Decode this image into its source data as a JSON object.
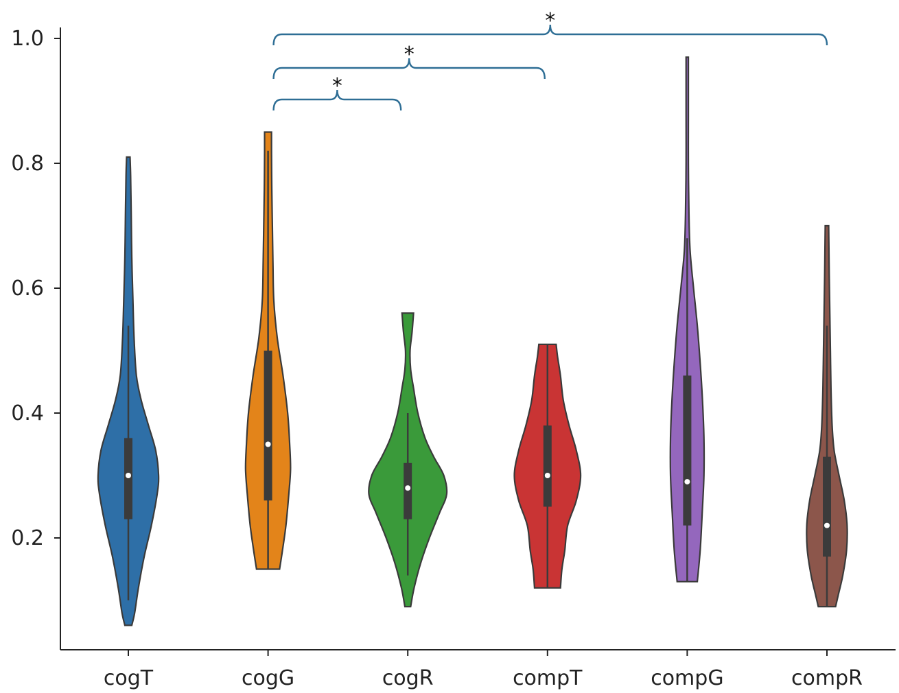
{
  "chart_data": {
    "type": "violin",
    "categories": [
      "cogT",
      "cogG",
      "cogR",
      "compT",
      "compG",
      "compR"
    ],
    "ylim": [
      0.0,
      1.0
    ],
    "yticks": [
      {
        "value": 0.2,
        "label": "0.2"
      },
      {
        "value": 0.4,
        "label": "0.4"
      },
      {
        "value": 0.6,
        "label": "0.6"
      },
      {
        "value": 0.8,
        "label": "0.8"
      },
      {
        "value": 1.0,
        "label": "1.0"
      }
    ],
    "grid": false,
    "violins": [
      {
        "name": "cogT",
        "color": "#2e6fa7",
        "min": 0.06,
        "max": 0.81,
        "q1": 0.23,
        "median": 0.3,
        "q3": 0.36,
        "whisker_low": 0.1,
        "whisker_high": 0.54,
        "density": [
          [
            0.06,
            0.012
          ],
          [
            0.08,
            0.022
          ],
          [
            0.12,
            0.035
          ],
          [
            0.17,
            0.055
          ],
          [
            0.22,
            0.08
          ],
          [
            0.27,
            0.1
          ],
          [
            0.3,
            0.105
          ],
          [
            0.34,
            0.095
          ],
          [
            0.38,
            0.07
          ],
          [
            0.42,
            0.045
          ],
          [
            0.46,
            0.028
          ],
          [
            0.52,
            0.02
          ],
          [
            0.58,
            0.016
          ],
          [
            0.65,
            0.012
          ],
          [
            0.72,
            0.01
          ],
          [
            0.78,
            0.008
          ],
          [
            0.81,
            0.006
          ]
        ]
      },
      {
        "name": "cogG",
        "color": "#e3841a",
        "min": 0.15,
        "max": 0.85,
        "q1": 0.26,
        "median": 0.35,
        "q3": 0.5,
        "whisker_low": 0.15,
        "whisker_high": 0.82,
        "density": [
          [
            0.15,
            0.04
          ],
          [
            0.18,
            0.05
          ],
          [
            0.22,
            0.062
          ],
          [
            0.27,
            0.072
          ],
          [
            0.31,
            0.078
          ],
          [
            0.35,
            0.075
          ],
          [
            0.4,
            0.068
          ],
          [
            0.46,
            0.052
          ],
          [
            0.52,
            0.032
          ],
          [
            0.58,
            0.02
          ],
          [
            0.64,
            0.017
          ],
          [
            0.7,
            0.015
          ],
          [
            0.76,
            0.013
          ],
          [
            0.82,
            0.012
          ],
          [
            0.85,
            0.012
          ]
        ]
      },
      {
        "name": "cogR",
        "color": "#3a9a3a",
        "min": 0.09,
        "max": 0.56,
        "q1": 0.23,
        "median": 0.28,
        "q3": 0.32,
        "whisker_low": 0.14,
        "whisker_high": 0.4,
        "density": [
          [
            0.09,
            0.01
          ],
          [
            0.12,
            0.022
          ],
          [
            0.16,
            0.045
          ],
          [
            0.2,
            0.075
          ],
          [
            0.24,
            0.11
          ],
          [
            0.27,
            0.135
          ],
          [
            0.3,
            0.125
          ],
          [
            0.33,
            0.09
          ],
          [
            0.36,
            0.06
          ],
          [
            0.4,
            0.035
          ],
          [
            0.44,
            0.02
          ],
          [
            0.47,
            0.01
          ],
          [
            0.5,
            0.008
          ],
          [
            0.53,
            0.015
          ],
          [
            0.56,
            0.02
          ]
        ]
      },
      {
        "name": "compT",
        "color": "#c93434",
        "min": 0.12,
        "max": 0.51,
        "q1": 0.25,
        "median": 0.3,
        "q3": 0.38,
        "whisker_low": 0.12,
        "whisker_high": 0.51,
        "density": [
          [
            0.12,
            0.045
          ],
          [
            0.15,
            0.05
          ],
          [
            0.18,
            0.06
          ],
          [
            0.22,
            0.07
          ],
          [
            0.26,
            0.1
          ],
          [
            0.3,
            0.115
          ],
          [
            0.34,
            0.1
          ],
          [
            0.38,
            0.075
          ],
          [
            0.42,
            0.055
          ],
          [
            0.46,
            0.045
          ],
          [
            0.49,
            0.035
          ],
          [
            0.51,
            0.03
          ]
        ]
      },
      {
        "name": "compG",
        "color": "#9467bd",
        "min": 0.13,
        "max": 0.97,
        "q1": 0.22,
        "median": 0.29,
        "q3": 0.46,
        "whisker_low": 0.13,
        "whisker_high": 0.68,
        "density": [
          [
            0.13,
            0.035
          ],
          [
            0.18,
            0.045
          ],
          [
            0.24,
            0.052
          ],
          [
            0.3,
            0.058
          ],
          [
            0.36,
            0.058
          ],
          [
            0.42,
            0.053
          ],
          [
            0.48,
            0.045
          ],
          [
            0.54,
            0.035
          ],
          [
            0.6,
            0.022
          ],
          [
            0.66,
            0.01
          ],
          [
            0.72,
            0.006
          ],
          [
            0.8,
            0.004
          ],
          [
            0.88,
            0.004
          ],
          [
            0.94,
            0.004
          ],
          [
            0.97,
            0.004
          ]
        ]
      },
      {
        "name": "compR",
        "color": "#8c564b",
        "min": 0.09,
        "max": 0.7,
        "q1": 0.17,
        "median": 0.22,
        "q3": 0.33,
        "whisker_low": 0.09,
        "whisker_high": 0.54,
        "density": [
          [
            0.09,
            0.03
          ],
          [
            0.11,
            0.04
          ],
          [
            0.14,
            0.055
          ],
          [
            0.18,
            0.068
          ],
          [
            0.22,
            0.07
          ],
          [
            0.26,
            0.06
          ],
          [
            0.3,
            0.042
          ],
          [
            0.34,
            0.025
          ],
          [
            0.38,
            0.018
          ],
          [
            0.44,
            0.014
          ],
          [
            0.5,
            0.012
          ],
          [
            0.56,
            0.01
          ],
          [
            0.62,
            0.008
          ],
          [
            0.66,
            0.007
          ],
          [
            0.7,
            0.006
          ]
        ]
      }
    ],
    "annotations": [
      {
        "from": "cogG",
        "to": "cogR",
        "label": "*",
        "color": "#2e6e95"
      },
      {
        "from": "cogG",
        "to": "compT",
        "label": "*",
        "color": "#2e6e95"
      },
      {
        "from": "cogG",
        "to": "compR",
        "label": "*",
        "color": "#2e6e95"
      }
    ]
  }
}
